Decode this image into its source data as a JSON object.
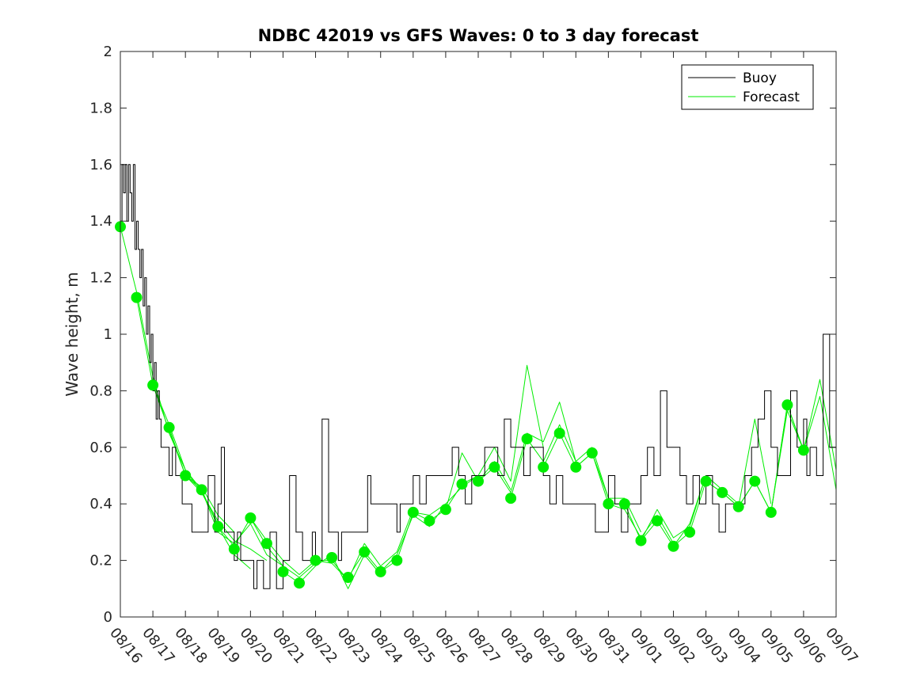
{
  "chart_data": {
    "type": "line",
    "title": "NDBC 42019 vs GFS Waves: 0 to 3 day forecast",
    "xlabel": "",
    "ylabel": "Wave height, m",
    "ylim": [
      0,
      2
    ],
    "xlim_days": [
      0,
      22
    ],
    "yticks": [
      0,
      0.2,
      0.4,
      0.6,
      0.8,
      1,
      1.2,
      1.4,
      1.6,
      1.8,
      2
    ],
    "ytick_labels": [
      "0",
      "0.2",
      "0.4",
      "0.6",
      "0.8",
      "1",
      "1.2",
      "1.4",
      "1.6",
      "1.8",
      "2"
    ],
    "xtick_labels": [
      "08/16",
      "08/17",
      "08/18",
      "08/19",
      "08/20",
      "08/21",
      "08/22",
      "08/23",
      "08/24",
      "08/25",
      "08/26",
      "08/27",
      "08/28",
      "08/29",
      "08/30",
      "08/31",
      "09/01",
      "09/02",
      "09/03",
      "09/04",
      "09/05",
      "09/06",
      "09/07"
    ],
    "legend": {
      "position": "top-right",
      "entries": [
        "Buoy",
        "Forecast"
      ]
    },
    "colors": {
      "buoy": "#000000",
      "forecast": "#00ee00"
    },
    "series": [
      {
        "name": "Buoy",
        "x": [
          0,
          0.05,
          0.1,
          0.15,
          0.2,
          0.25,
          0.3,
          0.35,
          0.4,
          0.45,
          0.5,
          0.55,
          0.6,
          0.65,
          0.7,
          0.75,
          0.8,
          0.85,
          0.9,
          0.95,
          1.0,
          1.05,
          1.1,
          1.15,
          1.2,
          1.25,
          1.3,
          1.4,
          1.5,
          1.6,
          1.7,
          1.8,
          1.9,
          2.0,
          2.1,
          2.2,
          2.3,
          2.5,
          2.7,
          2.9,
          3.0,
          3.1,
          3.2,
          3.3,
          3.4,
          3.5,
          3.6,
          3.7,
          3.8,
          3.9,
          4.0,
          4.1,
          4.2,
          4.4,
          4.6,
          4.8,
          5.0,
          5.2,
          5.4,
          5.6,
          5.8,
          5.9,
          6.0,
          6.2,
          6.4,
          6.6,
          6.7,
          6.8,
          6.9,
          7.0,
          7.1,
          7.2,
          7.3,
          7.4,
          7.5,
          7.6,
          7.7,
          7.8,
          7.9,
          8.0,
          8.2,
          8.4,
          8.5,
          8.6,
          8.7,
          8.8,
          9.0,
          9.2,
          9.4,
          9.6,
          9.8,
          10.0,
          10.2,
          10.4,
          10.6,
          10.8,
          11.0,
          11.2,
          11.4,
          11.6,
          11.8,
          12.0,
          12.2,
          12.4,
          12.6,
          12.8,
          13.0,
          13.2,
          13.4,
          13.6,
          13.8,
          14.0,
          14.2,
          14.4,
          14.6,
          14.8,
          15.0,
          15.2,
          15.4,
          15.6,
          15.8,
          16.0,
          16.2,
          16.4,
          16.6,
          16.8,
          17.0,
          17.2,
          17.4,
          17.6,
          17.8,
          18.0,
          18.2,
          18.4,
          18.6,
          18.8,
          19.0,
          19.2,
          19.4,
          19.6,
          19.8,
          20.0,
          20.2,
          20.4,
          20.6,
          20.8,
          21.0,
          21.1,
          21.2,
          21.3,
          21.4,
          21.6,
          21.8,
          22.0
        ],
        "values": [
          1.4,
          1.6,
          1.5,
          1.6,
          1.4,
          1.6,
          1.5,
          1.4,
          1.6,
          1.3,
          1.4,
          1.3,
          1.2,
          1.3,
          1.1,
          1.2,
          1.0,
          1.1,
          0.9,
          1.0,
          0.8,
          0.9,
          0.7,
          0.8,
          0.7,
          0.6,
          0.6,
          0.6,
          0.5,
          0.6,
          0.5,
          0.5,
          0.4,
          0.4,
          0.4,
          0.3,
          0.3,
          0.3,
          0.5,
          0.3,
          0.4,
          0.6,
          0.3,
          0.3,
          0.3,
          0.2,
          0.3,
          0.2,
          0.2,
          0.2,
          0.2,
          0.1,
          0.2,
          0.1,
          0.3,
          0.1,
          0.2,
          0.5,
          0.3,
          0.2,
          0.2,
          0.3,
          0.2,
          0.7,
          0.3,
          0.3,
          0.2,
          0.3,
          0.3,
          0.3,
          0.3,
          0.3,
          0.3,
          0.3,
          0.3,
          0.5,
          0.4,
          0.4,
          0.4,
          0.4,
          0.4,
          0.4,
          0.3,
          0.4,
          0.4,
          0.4,
          0.5,
          0.4,
          0.5,
          0.5,
          0.5,
          0.5,
          0.6,
          0.5,
          0.4,
          0.5,
          0.5,
          0.6,
          0.6,
          0.5,
          0.7,
          0.6,
          0.6,
          0.5,
          0.6,
          0.6,
          0.5,
          0.4,
          0.5,
          0.4,
          0.4,
          0.4,
          0.4,
          0.4,
          0.3,
          0.3,
          0.5,
          0.4,
          0.3,
          0.4,
          0.4,
          0.5,
          0.6,
          0.5,
          0.8,
          0.6,
          0.6,
          0.5,
          0.4,
          0.5,
          0.4,
          0.5,
          0.4,
          0.3,
          0.4,
          0.4,
          0.4,
          0.5,
          0.6,
          0.7,
          0.8,
          0.6,
          0.5,
          0.5,
          0.8,
          0.6,
          0.7,
          0.5,
          0.6,
          0.6,
          0.5,
          1.0,
          0.6,
          0.5
        ]
      },
      {
        "name": "Forecast",
        "markers_x": [
          0,
          0.5,
          1.0,
          1.5,
          2.0,
          2.5,
          3.0,
          3.5,
          4.0,
          4.5,
          5.0,
          5.5,
          6.0,
          6.5,
          7.0,
          7.5,
          8.0,
          8.5,
          9.0,
          9.5,
          10.0,
          10.5,
          11.0,
          11.5,
          12.0,
          12.5,
          13.0,
          13.5,
          14.0,
          14.5,
          15.0,
          15.5,
          16.0,
          16.5,
          17.0,
          17.5,
          18.0,
          18.5,
          19.0,
          19.5,
          20.0,
          20.5,
          21.0
        ],
        "markers_y": [
          1.38,
          1.13,
          0.82,
          0.67,
          0.5,
          0.45,
          0.32,
          0.24,
          0.35,
          0.26,
          0.16,
          0.12,
          0.2,
          0.21,
          0.14,
          0.23,
          0.16,
          0.2,
          0.37,
          0.34,
          0.38,
          0.47,
          0.48,
          0.53,
          0.42,
          0.63,
          0.53,
          0.65,
          0.53,
          0.58,
          0.4,
          0.4,
          0.27,
          0.34,
          0.25,
          0.3,
          0.48,
          0.44,
          0.39,
          0.48,
          0.37,
          0.75,
          0.59
        ],
        "runs": [
          {
            "x": [
              0,
              0.5,
              1.0,
              1.5,
              2.0,
              2.5,
              3.0
            ],
            "values": [
              1.38,
              1.15,
              0.85,
              0.65,
              0.52,
              0.44,
              0.33
            ]
          },
          {
            "x": [
              0.5,
              1.0,
              1.5,
              2.0,
              2.5,
              3.0,
              3.5
            ],
            "values": [
              1.13,
              0.82,
              0.66,
              0.5,
              0.46,
              0.36,
              0.3
            ]
          },
          {
            "x": [
              1.0,
              1.5,
              2.0,
              2.5,
              3.0,
              3.5,
              4.0
            ],
            "values": [
              0.82,
              0.68,
              0.52,
              0.45,
              0.32,
              0.22,
              0.17
            ]
          },
          {
            "x": [
              1.5,
              2.0,
              2.5,
              3.0,
              3.5,
              4.0,
              4.5
            ],
            "values": [
              0.67,
              0.5,
              0.44,
              0.34,
              0.27,
              0.24,
              0.2
            ]
          },
          {
            "x": [
              2.0,
              2.5,
              3.0,
              3.5,
              4.0,
              4.5,
              5.0
            ],
            "values": [
              0.5,
              0.45,
              0.3,
              0.26,
              0.33,
              0.22,
              0.18
            ]
          },
          {
            "x": [
              3.0,
              3.5,
              4.0,
              4.5,
              5.0,
              5.5,
              6.0
            ],
            "values": [
              0.32,
              0.25,
              0.35,
              0.25,
              0.18,
              0.14,
              0.19
            ]
          },
          {
            "x": [
              4.0,
              4.5,
              5.0,
              5.5,
              6.0,
              6.5,
              7.0
            ],
            "values": [
              0.35,
              0.27,
              0.2,
              0.15,
              0.2,
              0.19,
              0.13
            ]
          },
          {
            "x": [
              5.0,
              5.5,
              6.0,
              6.5,
              7.0,
              7.5,
              8.0
            ],
            "values": [
              0.16,
              0.12,
              0.18,
              0.22,
              0.1,
              0.22,
              0.15
            ]
          },
          {
            "x": [
              6.0,
              6.5,
              7.0,
              7.5,
              8.0,
              8.5,
              9.0
            ],
            "values": [
              0.2,
              0.2,
              0.13,
              0.26,
              0.18,
              0.23,
              0.38
            ]
          },
          {
            "x": [
              7.0,
              7.5,
              8.0,
              8.5,
              9.0,
              9.5,
              10.0
            ],
            "values": [
              0.14,
              0.23,
              0.16,
              0.22,
              0.36,
              0.32,
              0.4
            ]
          },
          {
            "x": [
              8.0,
              8.5,
              9.0,
              9.5,
              10.0,
              10.5,
              11.0
            ],
            "values": [
              0.16,
              0.2,
              0.37,
              0.36,
              0.4,
              0.46,
              0.5
            ]
          },
          {
            "x": [
              9.0,
              9.5,
              10.0,
              10.5,
              11.0,
              11.5,
              12.0
            ],
            "values": [
              0.37,
              0.34,
              0.38,
              0.58,
              0.48,
              0.55,
              0.45
            ]
          },
          {
            "x": [
              10.0,
              10.5,
              11.0,
              11.5,
              12.0,
              12.5,
              13.0
            ],
            "values": [
              0.38,
              0.47,
              0.5,
              0.6,
              0.48,
              0.89,
              0.6
            ]
          },
          {
            "x": [
              11.0,
              11.5,
              12.0,
              12.5,
              13.0,
              13.5,
              14.0
            ],
            "values": [
              0.48,
              0.53,
              0.44,
              0.65,
              0.62,
              0.76,
              0.55
            ]
          },
          {
            "x": [
              12.0,
              12.5,
              13.0,
              13.5,
              14.0,
              14.5,
              15.0
            ],
            "values": [
              0.42,
              0.63,
              0.55,
              0.68,
              0.55,
              0.6,
              0.42
            ]
          },
          {
            "x": [
              13.0,
              13.5,
              14.0,
              14.5,
              15.0,
              15.5,
              16.0
            ],
            "values": [
              0.53,
              0.65,
              0.53,
              0.58,
              0.42,
              0.42,
              0.3
            ]
          },
          {
            "x": [
              14.0,
              14.5,
              15.0,
              15.5,
              16.0,
              16.5,
              17.0
            ],
            "values": [
              0.53,
              0.58,
              0.4,
              0.38,
              0.28,
              0.36,
              0.26
            ]
          },
          {
            "x": [
              15.0,
              15.5,
              16.0,
              16.5,
              17.0,
              17.5,
              18.0
            ],
            "values": [
              0.4,
              0.4,
              0.27,
              0.38,
              0.28,
              0.32,
              0.5
            ]
          },
          {
            "x": [
              16.0,
              16.5,
              17.0,
              17.5,
              18.0,
              18.5,
              19.0
            ],
            "values": [
              0.27,
              0.34,
              0.25,
              0.33,
              0.5,
              0.45,
              0.4
            ]
          },
          {
            "x": [
              17.0,
              17.5,
              18.0,
              18.5,
              19.0,
              19.5,
              20.0
            ],
            "values": [
              0.25,
              0.3,
              0.48,
              0.44,
              0.39,
              0.7,
              0.4
            ]
          },
          {
            "x": [
              18.0,
              18.5,
              19.0,
              19.5,
              20.0,
              20.5,
              21.0
            ],
            "values": [
              0.48,
              0.44,
              0.39,
              0.48,
              0.37,
              0.75,
              0.59
            ]
          },
          {
            "x": [
              19.0,
              19.5,
              20.0,
              20.5,
              21.0,
              21.5,
              22.0
            ],
            "values": [
              0.39,
              0.48,
              0.37,
              0.73,
              0.59,
              0.84,
              0.52
            ]
          },
          {
            "x": [
              20.0,
              20.5,
              21.0,
              21.5,
              22.0
            ],
            "values": [
              0.37,
              0.75,
              0.59,
              0.78,
              0.45
            ]
          }
        ]
      }
    ]
  }
}
